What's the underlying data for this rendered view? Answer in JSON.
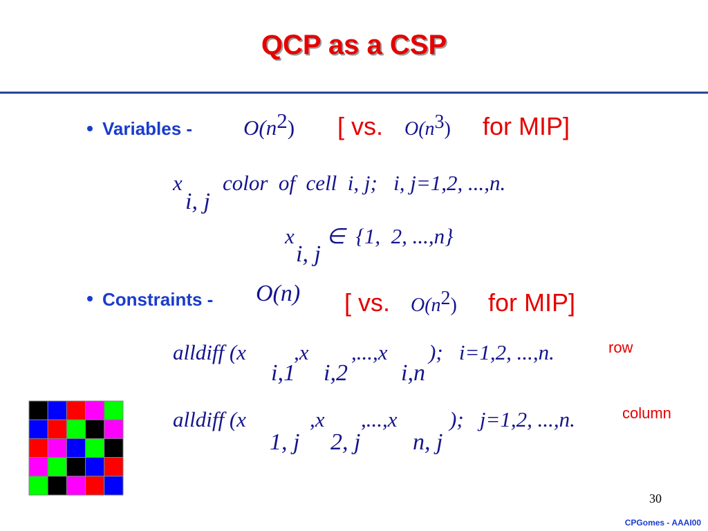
{
  "title": "QCP as a CSP",
  "bullets": [
    {
      "label": "Variables -",
      "size": {
        "base": "O(n",
        "exp": "2",
        "close": ")"
      },
      "mip": {
        "open": "[ vs.",
        "base": "O(n",
        "exp": "3",
        "close": ")",
        "tail": "for MIP]"
      },
      "formulas": [
        {
          "parts": [
            "x",
            "color  of  cell  i, j;   i, j=1,2, ...,n."
          ],
          "subs": [
            "i, j"
          ]
        },
        {
          "parts": [
            "x",
            "∈  {1,  2, ...,n}"
          ],
          "subs": [
            "i, j"
          ]
        }
      ]
    },
    {
      "label": "Constraints -",
      "size": {
        "base": "O(n)"
      },
      "mip": {
        "open": "[ vs.",
        "base": "O(n",
        "exp": "2",
        "close": ")",
        "tail": "for MIP]"
      },
      "formulas": [
        {
          "parts": [
            "alldiff (x",
            ",x",
            ",...,x",
            ");   i=1,2, ...,n."
          ],
          "subs": [
            "i,1",
            "i,2",
            "i,n"
          ],
          "note": "row"
        },
        {
          "parts": [
            "alldiff (x",
            ",x",
            ",...,x",
            ");   j=1,2, ...,n."
          ],
          "subs": [
            "1, j",
            "2, j",
            "n, j"
          ],
          "note": "column"
        }
      ]
    }
  ],
  "footer": {
    "page": "30",
    "credit": "CPGomes - AAAI00"
  }
}
